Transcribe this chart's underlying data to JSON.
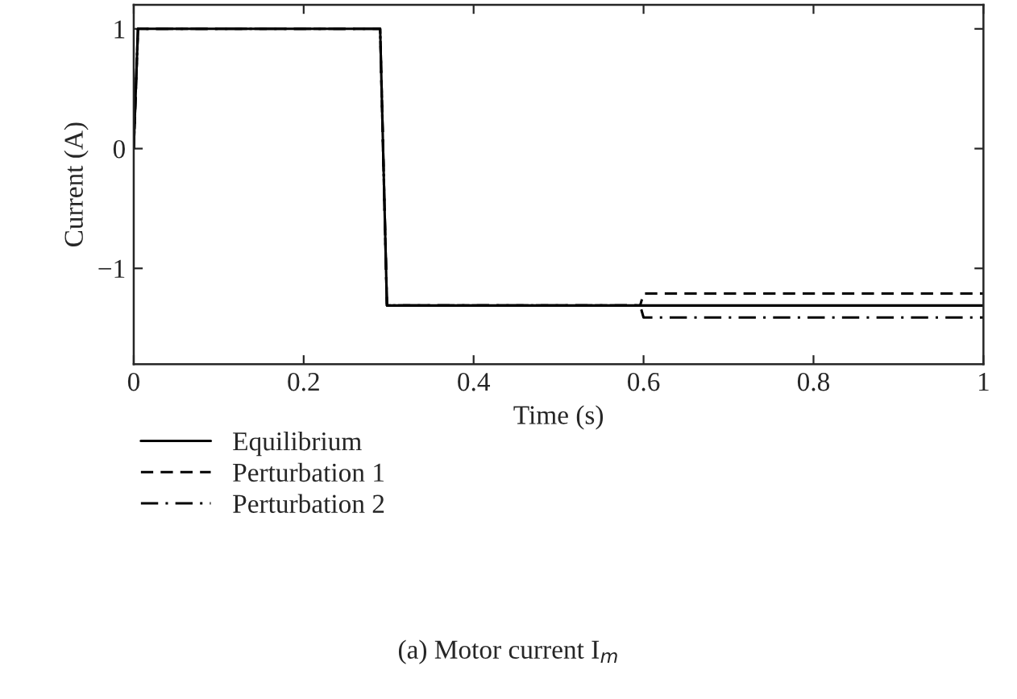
{
  "chart_data": {
    "type": "line",
    "xlabel": "Time (s)",
    "ylabel": "Current (A)",
    "xlim": [
      0,
      1
    ],
    "ylim": [
      -1.8,
      1.2
    ],
    "xticks": [
      0,
      0.2,
      0.4,
      0.6,
      0.8,
      1
    ],
    "yticks": [
      {
        "value": -1,
        "label": "−1"
      },
      0,
      1
    ],
    "grid": false,
    "legend": "bottom left",
    "marker": "none",
    "annotations": [
      "(a) Motor current I$_{m}$"
    ],
    "series": [
      {
        "name": "Equilibrium",
        "color": "#000000",
        "line_style": "solid",
        "x": [
          0,
          0.005,
          0.29,
          0.298,
          1
        ],
        "values": [
          0,
          1,
          1,
          -1.31,
          -1.31
        ]
      },
      {
        "name": "Perturbation 1",
        "color": "#000000",
        "line_style": "dashed",
        "x": [
          0,
          0.005,
          0.29,
          0.298,
          0.596,
          0.6,
          1
        ],
        "values": [
          0,
          1,
          1,
          -1.31,
          -1.31,
          -1.21,
          -1.21
        ]
      },
      {
        "name": "Perturbation 2",
        "color": "#000000",
        "line_style": "dashdot",
        "x": [
          0,
          0.005,
          0.29,
          0.298,
          0.596,
          0.6,
          1
        ],
        "values": [
          0,
          1,
          1,
          -1.31,
          -1.31,
          -1.41,
          -1.41
        ]
      }
    ]
  }
}
